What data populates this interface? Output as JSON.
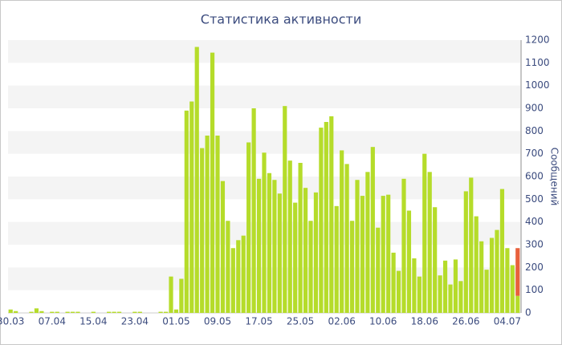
{
  "chart_data": {
    "type": "bar",
    "title": "Статистика активности",
    "y_label": "Сообщений",
    "categories": [
      "30.03",
      null,
      null,
      null,
      null,
      null,
      null,
      null,
      "07.04",
      null,
      null,
      null,
      null,
      null,
      null,
      null,
      "15.04",
      null,
      null,
      null,
      null,
      null,
      null,
      null,
      "23.04",
      null,
      null,
      null,
      null,
      null,
      null,
      null,
      "01.05",
      null,
      null,
      null,
      null,
      null,
      null,
      null,
      "09.05",
      null,
      null,
      null,
      null,
      null,
      null,
      null,
      "17.05",
      null,
      null,
      null,
      null,
      null,
      null,
      null,
      "25.05",
      null,
      null,
      null,
      null,
      null,
      null,
      null,
      "02.06",
      null,
      null,
      null,
      null,
      null,
      null,
      null,
      "10.06",
      null,
      null,
      null,
      null,
      null,
      null,
      null,
      "18.06",
      null,
      null,
      null,
      null,
      null,
      null,
      null,
      "26.06",
      null,
      null,
      null,
      null,
      null,
      null,
      null,
      "04.07",
      null,
      null
    ],
    "series": [
      {
        "color": "#b5dc2a",
        "values": [
          15,
          8,
          0,
          0,
          5,
          20,
          8,
          0,
          5,
          5,
          0,
          5,
          5,
          5,
          0,
          0,
          5,
          0,
          0,
          5,
          5,
          5,
          0,
          0,
          5,
          5,
          0,
          0,
          0,
          5,
          5,
          160,
          15,
          150,
          890,
          930,
          1170,
          725,
          780,
          1145,
          780,
          580,
          405,
          285,
          320,
          340,
          750,
          900,
          590,
          705,
          615,
          585,
          525,
          910,
          670,
          485,
          660,
          550,
          405,
          530,
          815,
          840,
          865,
          470,
          715,
          655,
          405,
          585,
          515,
          620,
          730,
          375,
          515,
          520,
          265,
          185,
          590,
          450,
          240,
          160,
          700,
          620,
          465,
          165,
          230,
          125,
          235,
          140,
          535,
          595,
          425,
          315,
          190,
          330,
          365,
          545,
          285,
          210,
          75
        ]
      },
      {
        "color": "#e8603c",
        "values": [
          null,
          null,
          null,
          null,
          null,
          null,
          null,
          null,
          null,
          null,
          null,
          null,
          null,
          null,
          null,
          null,
          null,
          null,
          null,
          null,
          null,
          null,
          null,
          null,
          null,
          null,
          null,
          null,
          null,
          null,
          null,
          null,
          null,
          null,
          null,
          null,
          null,
          null,
          null,
          null,
          null,
          null,
          null,
          null,
          null,
          null,
          null,
          null,
          null,
          null,
          null,
          null,
          null,
          null,
          null,
          null,
          null,
          null,
          null,
          null,
          null,
          null,
          null,
          null,
          null,
          null,
          null,
          null,
          null,
          null,
          null,
          null,
          null,
          null,
          null,
          null,
          null,
          null,
          null,
          null,
          null,
          null,
          null,
          null,
          null,
          null,
          null,
          null,
          null,
          null,
          null,
          null,
          null,
          null,
          null,
          null,
          null,
          null,
          210
        ]
      }
    ],
    "stacked": true,
    "ylim": [
      0,
      1200
    ],
    "yticks": [
      0,
      100,
      200,
      300,
      400,
      500,
      600,
      700,
      800,
      900,
      1000,
      1100,
      1200
    ],
    "grid": "bands"
  }
}
